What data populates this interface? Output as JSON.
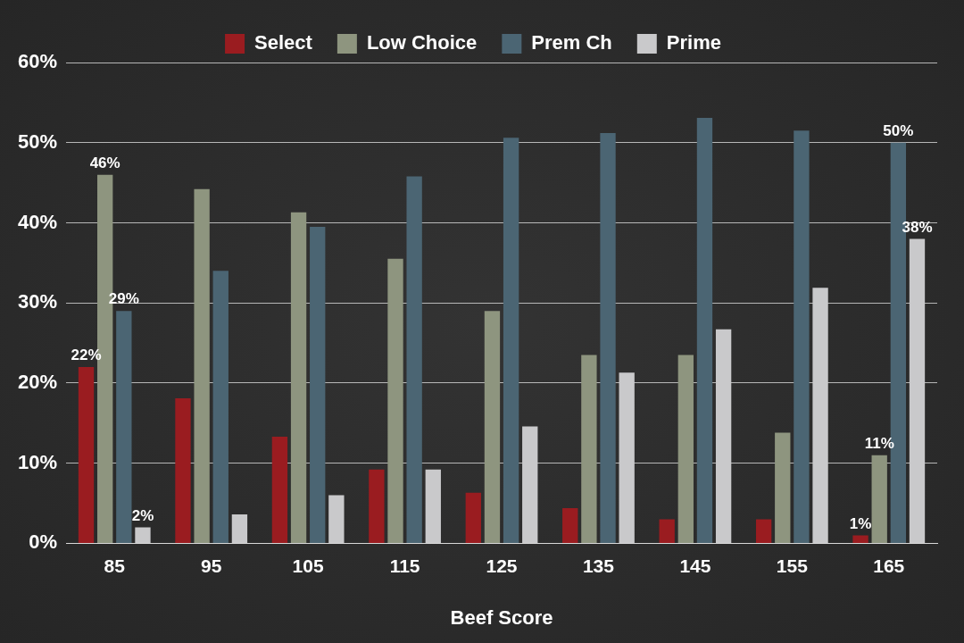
{
  "chart_data": {
    "type": "bar",
    "x_label": "Beef Score",
    "categories": [
      "85",
      "95",
      "105",
      "115",
      "125",
      "135",
      "145",
      "155",
      "165"
    ],
    "series": [
      {
        "name": "Select",
        "color": "#9a1c20",
        "values": [
          22,
          18.1,
          13.3,
          9.2,
          6.3,
          4.4,
          3.0,
          3.0,
          1
        ],
        "value_labels": [
          "22%",
          null,
          null,
          null,
          null,
          null,
          null,
          null,
          "1%"
        ]
      },
      {
        "name": "Low Choice",
        "color": "#8e957f",
        "values": [
          46,
          44.2,
          41.3,
          35.5,
          29.0,
          23.5,
          23.5,
          13.8,
          11
        ],
        "value_labels": [
          "46%",
          null,
          null,
          null,
          null,
          null,
          null,
          null,
          "11%"
        ]
      },
      {
        "name": "Prem Ch",
        "color": "#4b6573",
        "values": [
          29,
          34.0,
          39.5,
          45.8,
          50.6,
          51.2,
          53.1,
          51.5,
          50
        ],
        "value_labels": [
          "29%",
          null,
          null,
          null,
          null,
          null,
          null,
          null,
          "50%"
        ]
      },
      {
        "name": "Prime",
        "color": "#c9c9cb",
        "values": [
          2,
          3.6,
          6.0,
          9.2,
          14.6,
          21.3,
          26.7,
          31.9,
          38
        ],
        "value_labels": [
          "2%",
          null,
          null,
          null,
          null,
          null,
          null,
          null,
          "38%"
        ]
      }
    ],
    "ylim": [
      0,
      60
    ],
    "yticks": [
      {
        "value": 0,
        "label": "0%"
      },
      {
        "value": 10,
        "label": "10%"
      },
      {
        "value": 20,
        "label": "20%"
      },
      {
        "value": 30,
        "label": "30%"
      },
      {
        "value": 40,
        "label": "40%"
      },
      {
        "value": 50,
        "label": "50%"
      },
      {
        "value": 60,
        "label": "60%"
      }
    ],
    "grid": true,
    "legend": "top",
    "data_labels": true
  }
}
